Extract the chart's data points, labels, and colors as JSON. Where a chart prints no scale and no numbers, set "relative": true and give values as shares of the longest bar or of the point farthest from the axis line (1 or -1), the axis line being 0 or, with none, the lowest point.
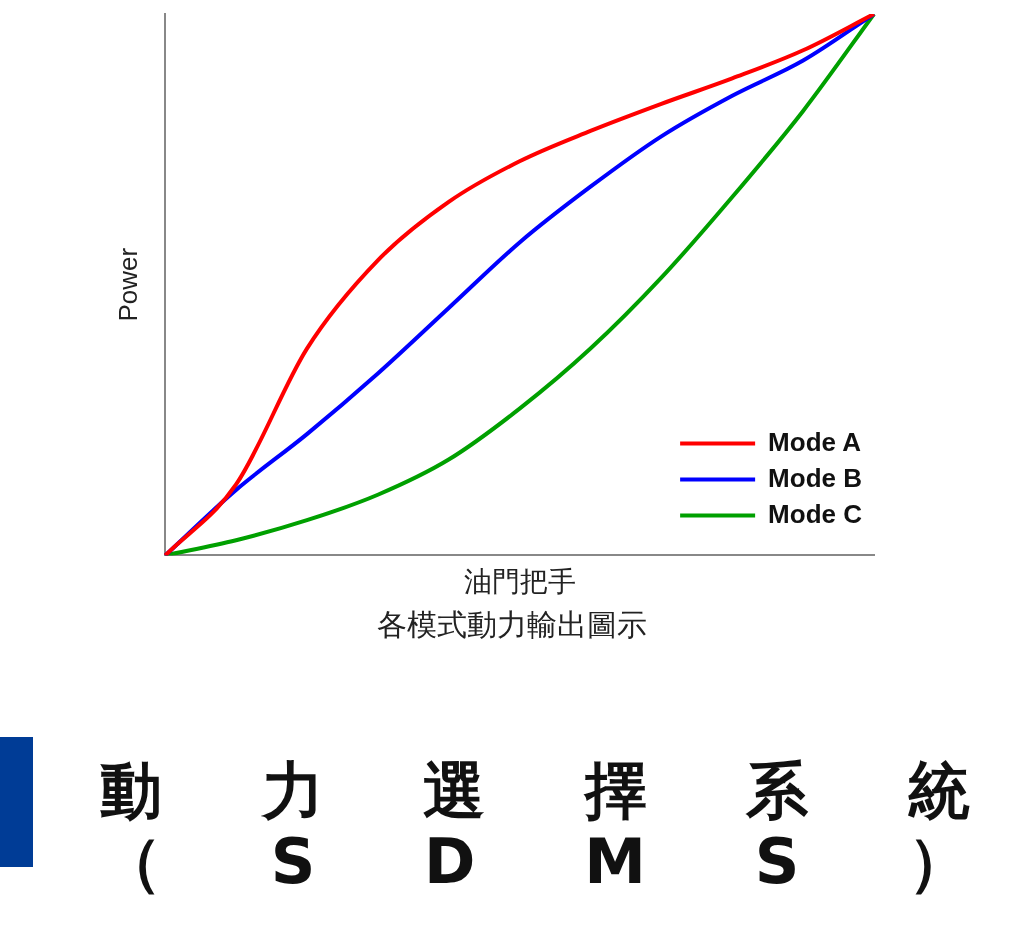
{
  "chart_data": {
    "type": "line",
    "title": "動力選擇系統（SDMS）",
    "subtitle": "各模式動力輸出圖示",
    "xlabel": "油門把手",
    "ylabel": "Power",
    "relative": true,
    "legend": "bottom right",
    "marker": "none",
    "line_style": "solid",
    "grid": false,
    "categories": [
      null,
      null,
      null,
      null,
      null,
      null,
      null,
      null,
      null,
      null,
      null
    ],
    "series": [
      {
        "name": "Mode A",
        "color": "#ff0000",
        "values": [
          0,
          0.131,
          0.382,
          0.545,
          0.653,
          0.728,
          0.784,
          0.834,
          0.881,
          0.933,
          1
        ]
      },
      {
        "name": "Mode B",
        "color": "#0000ff",
        "values": [
          0,
          0.121,
          0.224,
          0.336,
          0.457,
          0.578,
          0.681,
          0.774,
          0.849,
          0.914,
          1
        ]
      },
      {
        "name": "Mode C",
        "color": "#00a000",
        "values": [
          0,
          0.028,
          0.065,
          0.112,
          0.177,
          0.271,
          0.382,
          0.513,
          0.662,
          0.821,
          1
        ]
      }
    ]
  }
}
